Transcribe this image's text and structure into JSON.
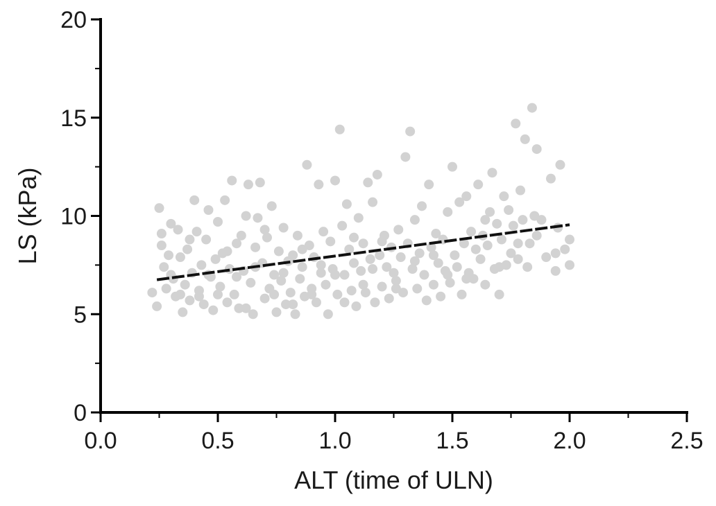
{
  "chart_data": {
    "type": "scatter",
    "title": "",
    "xlabel": "ALT (time of ULN)",
    "ylabel": "LS (kPa)",
    "xlim": [
      0,
      2.5
    ],
    "ylim": [
      0,
      20
    ],
    "x_ticks": [
      "0.0",
      "0.5",
      "1.0",
      "1.5",
      "2.0",
      "2.5"
    ],
    "y_ticks": [
      "0",
      "5",
      "10",
      "15",
      "20"
    ],
    "grid": false,
    "legend": "none",
    "colors": {
      "points": "#d2d2d2",
      "fit_line": "#111111",
      "axes": "#000000"
    },
    "trendline": {
      "style": "dashed",
      "x": [
        0.24,
        2.0
      ],
      "y": [
        6.75,
        9.55
      ]
    },
    "series": [
      {
        "points": [
          [
            0.22,
            6.1
          ],
          [
            0.24,
            5.4
          ],
          [
            0.25,
            10.4
          ],
          [
            0.26,
            9.1
          ],
          [
            0.27,
            7.4
          ],
          [
            0.28,
            6.3
          ],
          [
            0.29,
            8.0
          ],
          [
            0.3,
            9.6
          ],
          [
            0.31,
            6.8
          ],
          [
            0.32,
            5.9
          ],
          [
            0.33,
            9.3
          ],
          [
            0.34,
            7.9
          ],
          [
            0.35,
            5.1
          ],
          [
            0.36,
            6.5
          ],
          [
            0.37,
            8.3
          ],
          [
            0.38,
            5.7
          ],
          [
            0.39,
            7.1
          ],
          [
            0.4,
            10.8
          ],
          [
            0.41,
            9.2
          ],
          [
            0.42,
            6.2
          ],
          [
            0.43,
            7.5
          ],
          [
            0.44,
            5.5
          ],
          [
            0.45,
            8.8
          ],
          [
            0.46,
            10.3
          ],
          [
            0.47,
            6.9
          ],
          [
            0.48,
            5.2
          ],
          [
            0.49,
            7.8
          ],
          [
            0.5,
            9.7
          ],
          [
            0.51,
            6.4
          ],
          [
            0.52,
            8.1
          ],
          [
            0.53,
            10.8
          ],
          [
            0.54,
            5.6
          ],
          [
            0.55,
            7.3
          ],
          [
            0.56,
            11.8
          ],
          [
            0.57,
            6.0
          ],
          [
            0.58,
            8.6
          ],
          [
            0.59,
            5.3
          ],
          [
            0.6,
            9.0
          ],
          [
            0.61,
            7.2
          ],
          [
            0.62,
            10.0
          ],
          [
            0.63,
            11.6
          ],
          [
            0.64,
            6.6
          ],
          [
            0.65,
            5.0
          ],
          [
            0.66,
            8.4
          ],
          [
            0.67,
            9.9
          ],
          [
            0.68,
            11.7
          ],
          [
            0.69,
            7.6
          ],
          [
            0.7,
            5.8
          ],
          [
            0.71,
            8.9
          ],
          [
            0.72,
            6.3
          ],
          [
            0.73,
            10.5
          ],
          [
            0.74,
            7.0
          ],
          [
            0.75,
            5.1
          ],
          [
            0.76,
            8.2
          ],
          [
            0.77,
            6.7
          ],
          [
            0.78,
            9.4
          ],
          [
            0.79,
            5.5
          ],
          [
            0.8,
            7.7
          ],
          [
            0.81,
            6.1
          ],
          [
            0.82,
            8.0
          ],
          [
            0.83,
            5.0
          ],
          [
            0.84,
            9.0
          ],
          [
            0.85,
            6.8
          ],
          [
            0.86,
            7.4
          ],
          [
            0.87,
            5.9
          ],
          [
            0.88,
            12.6
          ],
          [
            0.89,
            8.5
          ],
          [
            0.9,
            6.3
          ],
          [
            0.91,
            7.9
          ],
          [
            0.92,
            5.6
          ],
          [
            0.93,
            11.6
          ],
          [
            0.94,
            7.1
          ],
          [
            0.95,
            9.2
          ],
          [
            0.96,
            6.5
          ],
          [
            0.97,
            5.0
          ],
          [
            0.98,
            8.7
          ],
          [
            0.99,
            7.3
          ],
          [
            1.0,
            11.8
          ],
          [
            1.01,
            6.0
          ],
          [
            1.02,
            14.4
          ],
          [
            1.03,
            9.5
          ],
          [
            1.04,
            7.0
          ],
          [
            1.05,
            10.6
          ],
          [
            1.06,
            8.3
          ],
          [
            1.07,
            6.2
          ],
          [
            1.08,
            7.6
          ],
          [
            1.09,
            5.4
          ],
          [
            1.1,
            9.9
          ],
          [
            1.11,
            7.2
          ],
          [
            1.12,
            8.6
          ],
          [
            1.13,
            6.1
          ],
          [
            1.14,
            11.7
          ],
          [
            1.15,
            7.8
          ],
          [
            1.16,
            10.7
          ],
          [
            1.17,
            5.6
          ],
          [
            1.18,
            12.1
          ],
          [
            1.19,
            8.0
          ],
          [
            1.2,
            6.4
          ],
          [
            1.21,
            9.0
          ],
          [
            1.22,
            7.4
          ],
          [
            1.23,
            5.8
          ],
          [
            1.24,
            8.4
          ],
          [
            1.25,
            7.1
          ],
          [
            1.26,
            6.7
          ],
          [
            1.27,
            9.3
          ],
          [
            1.28,
            7.9
          ],
          [
            1.29,
            6.1
          ],
          [
            1.3,
            13.0
          ],
          [
            1.31,
            8.6
          ],
          [
            1.32,
            14.3
          ],
          [
            1.33,
            7.3
          ],
          [
            1.34,
            9.8
          ],
          [
            1.35,
            6.3
          ],
          [
            1.36,
            8.1
          ],
          [
            1.37,
            10.5
          ],
          [
            1.38,
            7.0
          ],
          [
            1.39,
            5.7
          ],
          [
            1.4,
            11.6
          ],
          [
            1.41,
            8.4
          ],
          [
            1.42,
            6.5
          ],
          [
            1.43,
            9.1
          ],
          [
            1.44,
            7.6
          ],
          [
            1.45,
            5.9
          ],
          [
            1.46,
            8.8
          ],
          [
            1.47,
            7.2
          ],
          [
            1.48,
            10.2
          ],
          [
            1.49,
            6.6
          ],
          [
            1.5,
            12.5
          ],
          [
            1.51,
            8.0
          ],
          [
            1.52,
            7.4
          ],
          [
            1.53,
            10.7
          ],
          [
            1.54,
            6.0
          ],
          [
            1.55,
            8.6
          ],
          [
            1.56,
            11.0
          ],
          [
            1.57,
            7.1
          ],
          [
            1.58,
            9.2
          ],
          [
            1.59,
            6.8
          ],
          [
            1.6,
            8.3
          ],
          [
            1.61,
            11.6
          ],
          [
            1.62,
            7.8
          ],
          [
            1.63,
            9.0
          ],
          [
            1.64,
            6.5
          ],
          [
            1.65,
            8.5
          ],
          [
            1.66,
            10.2
          ],
          [
            1.67,
            12.2
          ],
          [
            1.68,
            7.3
          ],
          [
            1.69,
            9.6
          ],
          [
            1.7,
            6.0
          ],
          [
            1.71,
            8.8
          ],
          [
            1.72,
            11.0
          ],
          [
            1.73,
            7.5
          ],
          [
            1.74,
            10.3
          ],
          [
            1.75,
            8.1
          ],
          [
            1.76,
            9.5
          ],
          [
            1.77,
            14.7
          ],
          [
            1.78,
            7.8
          ],
          [
            1.79,
            11.3
          ],
          [
            1.8,
            9.8
          ],
          [
            1.81,
            13.9
          ],
          [
            1.82,
            7.4
          ],
          [
            1.83,
            8.6
          ],
          [
            1.84,
            15.5
          ],
          [
            1.85,
            10.0
          ],
          [
            1.86,
            13.4
          ],
          [
            1.88,
            9.8
          ],
          [
            1.9,
            7.9
          ],
          [
            1.92,
            11.9
          ],
          [
            1.94,
            7.2
          ],
          [
            1.95,
            9.4
          ],
          [
            1.96,
            12.6
          ],
          [
            1.98,
            8.3
          ],
          [
            2.0,
            8.8
          ],
          [
            2.0,
            7.5
          ],
          [
            0.26,
            8.5
          ],
          [
            0.3,
            7.0
          ],
          [
            0.34,
            6.0
          ],
          [
            0.38,
            8.8
          ],
          [
            0.42,
            5.9
          ],
          [
            0.46,
            7.0
          ],
          [
            0.5,
            6.0
          ],
          [
            0.54,
            8.2
          ],
          [
            0.58,
            6.9
          ],
          [
            0.62,
            5.3
          ],
          [
            0.66,
            7.4
          ],
          [
            0.7,
            9.3
          ],
          [
            0.74,
            6.0
          ],
          [
            0.78,
            7.1
          ],
          [
            0.82,
            5.5
          ],
          [
            0.86,
            8.3
          ],
          [
            0.9,
            6.0
          ],
          [
            0.94,
            7.5
          ],
          [
            1.0,
            7.0
          ],
          [
            1.04,
            5.6
          ],
          [
            1.08,
            8.9
          ],
          [
            1.12,
            6.5
          ],
          [
            1.16,
            7.3
          ],
          [
            1.2,
            8.7
          ],
          [
            1.26,
            6.3
          ],
          [
            1.34,
            7.7
          ],
          [
            1.42,
            8.0
          ],
          [
            1.48,
            7.0
          ],
          [
            1.56,
            6.8
          ],
          [
            1.64,
            9.8
          ],
          [
            1.7,
            7.4
          ],
          [
            1.78,
            8.6
          ],
          [
            1.86,
            9.0
          ],
          [
            1.94,
            8.1
          ]
        ]
      }
    ]
  }
}
